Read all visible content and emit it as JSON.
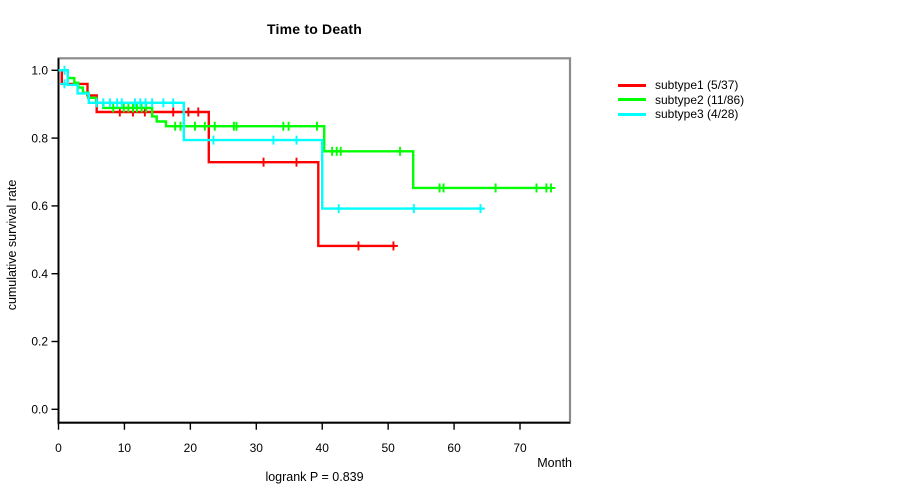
{
  "chart_data": {
    "type": "line",
    "variant": "kaplan-meier-step",
    "title": "Time to Death",
    "xlabel": "Month",
    "ylabel": "cumulative survival rate",
    "annotation": "logrank P = 0.839",
    "xlim": [
      0,
      77.6
    ],
    "ylim": [
      0.0,
      1.0
    ],
    "grid": false,
    "legend_position": "right-outside",
    "x_ticks": {
      "values": [
        0,
        10,
        20,
        30,
        40,
        50,
        60,
        70
      ],
      "labels": [
        "0",
        "10",
        "20",
        "30",
        "40",
        "50",
        "60",
        "70"
      ]
    },
    "y_ticks": {
      "values": [
        0.0,
        0.2,
        0.4,
        0.6,
        0.8,
        1.0
      ],
      "labels": [
        "0.0",
        "0.2",
        "0.4",
        "0.6",
        "0.8",
        "1.0"
      ]
    },
    "series": [
      {
        "name": "subtype1 (5/37)",
        "color": "#ff0000",
        "events": 5,
        "n": 37,
        "steps": [
          [
            0,
            1.0
          ],
          [
            0.5,
            1.0
          ],
          [
            0.5,
            0.96
          ],
          [
            4.4,
            0.96
          ],
          [
            4.4,
            0.926
          ],
          [
            5.8,
            0.926
          ],
          [
            5.8,
            0.877
          ],
          [
            22.8,
            0.877
          ],
          [
            22.8,
            0.729
          ],
          [
            39.4,
            0.729
          ],
          [
            39.4,
            0.482
          ],
          [
            51.1,
            0.482
          ]
        ],
        "censors": [
          [
            9.3,
            0.877
          ],
          [
            11.3,
            0.877
          ],
          [
            13.1,
            0.877
          ],
          [
            17.4,
            0.877
          ],
          [
            19.7,
            0.877
          ],
          [
            21.2,
            0.877
          ],
          [
            31.1,
            0.729
          ],
          [
            36.1,
            0.729
          ],
          [
            45.5,
            0.482
          ],
          [
            50.8,
            0.482
          ]
        ]
      },
      {
        "name": "subtype2 (11/86)",
        "color": "#00ff00",
        "events": 11,
        "n": 86,
        "steps": [
          [
            0,
            1.0
          ],
          [
            1.4,
            1.0
          ],
          [
            1.4,
            0.977
          ],
          [
            2.4,
            0.977
          ],
          [
            2.4,
            0.963
          ],
          [
            3.0,
            0.963
          ],
          [
            3.0,
            0.949
          ],
          [
            3.7,
            0.949
          ],
          [
            3.7,
            0.934
          ],
          [
            4.5,
            0.934
          ],
          [
            4.5,
            0.919
          ],
          [
            5.7,
            0.919
          ],
          [
            5.7,
            0.904
          ],
          [
            6.8,
            0.904
          ],
          [
            6.8,
            0.889
          ],
          [
            14.2,
            0.889
          ],
          [
            14.2,
            0.864
          ],
          [
            14.9,
            0.864
          ],
          [
            14.9,
            0.849
          ],
          [
            16.3,
            0.849
          ],
          [
            16.3,
            0.835
          ],
          [
            40.3,
            0.835
          ],
          [
            40.3,
            0.761
          ],
          [
            53.8,
            0.761
          ],
          [
            53.8,
            0.653
          ],
          [
            74.8,
            0.653
          ]
        ],
        "censors": [
          [
            8.3,
            0.889
          ],
          [
            9.9,
            0.889
          ],
          [
            10.6,
            0.889
          ],
          [
            11.3,
            0.889
          ],
          [
            11.9,
            0.889
          ],
          [
            12.6,
            0.889
          ],
          [
            13.3,
            0.889
          ],
          [
            17.7,
            0.835
          ],
          [
            18.5,
            0.835
          ],
          [
            20.7,
            0.835
          ],
          [
            22.2,
            0.835
          ],
          [
            23.7,
            0.835
          ],
          [
            26.6,
            0.835
          ],
          [
            27.0,
            0.835
          ],
          [
            34.1,
            0.835
          ],
          [
            34.9,
            0.835
          ],
          [
            39.2,
            0.835
          ],
          [
            41.5,
            0.761
          ],
          [
            42.2,
            0.761
          ],
          [
            42.8,
            0.761
          ],
          [
            51.8,
            0.761
          ],
          [
            57.8,
            0.653
          ],
          [
            58.4,
            0.653
          ],
          [
            66.3,
            0.653
          ],
          [
            72.5,
            0.653
          ],
          [
            74.0,
            0.653
          ],
          [
            74.7,
            0.653
          ]
        ]
      },
      {
        "name": "subtype3 (4/28)",
        "color": "#00ffff",
        "events": 4,
        "n": 28,
        "steps": [
          [
            0,
            1.0
          ],
          [
            1.4,
            1.0
          ],
          [
            1.4,
            0.957
          ],
          [
            2.9,
            0.957
          ],
          [
            2.9,
            0.932
          ],
          [
            4.6,
            0.932
          ],
          [
            4.6,
            0.904
          ],
          [
            19.0,
            0.904
          ],
          [
            19.0,
            0.794
          ],
          [
            40.0,
            0.794
          ],
          [
            40.0,
            0.592
          ],
          [
            64.5,
            0.592
          ]
        ],
        "censors": [
          [
            0.9,
            1.0
          ],
          [
            0.9,
            0.96
          ],
          [
            5.8,
            0.904
          ],
          [
            6.8,
            0.904
          ],
          [
            7.8,
            0.904
          ],
          [
            8.9,
            0.904
          ],
          [
            9.6,
            0.904
          ],
          [
            11.6,
            0.904
          ],
          [
            12.4,
            0.904
          ],
          [
            13.2,
            0.904
          ],
          [
            14.2,
            0.904
          ],
          [
            15.9,
            0.904
          ],
          [
            17.4,
            0.904
          ],
          [
            23.5,
            0.794
          ],
          [
            32.6,
            0.794
          ],
          [
            36.1,
            0.794
          ],
          [
            42.5,
            0.592
          ],
          [
            53.9,
            0.592
          ],
          [
            64.0,
            0.592
          ]
        ]
      }
    ]
  }
}
